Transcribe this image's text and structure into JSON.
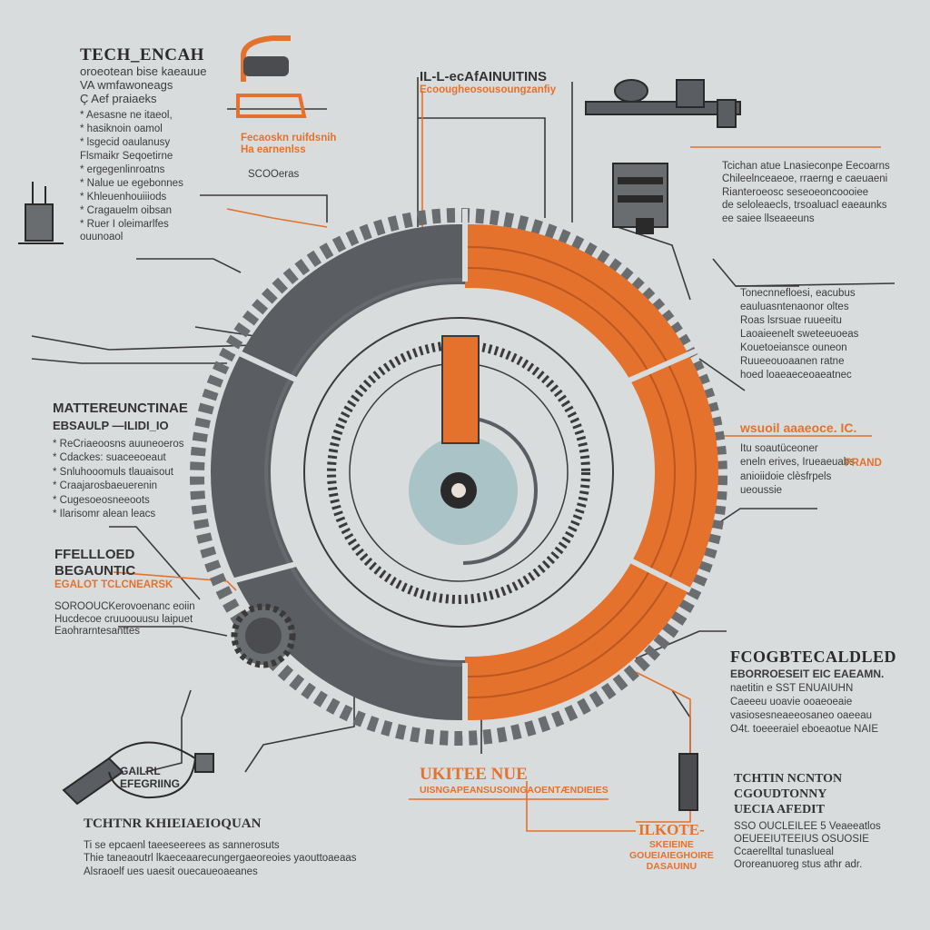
{
  "colors": {
    "background": "#d9dcdd",
    "accent_orange": "#e4712c",
    "dark_gray": "#5a5d61",
    "light_blue": "#a9c3c6",
    "ink": "#2b2b2b"
  },
  "blocks": {
    "top_left": {
      "title": "TECH_ENCAH",
      "lines": [
        "oroeotean bise kaeauue",
        "VA wmfawoneags",
        "Ç Aef praiaeks",
        "* Aesasne ne itaeol,",
        "* hasiknoin oamol",
        "* lsgecid oaulanusy",
        "Flsmaikr Seqoetirne",
        "* ergegenlinroatns",
        "* Nalue ue egebonnes",
        "* Khleuenhouiiiods",
        "* Cragauelm oibsan",
        "* Ruer I oleimarlfes",
        "ouunoaol"
      ]
    },
    "top_left_callout": {
      "lines": [
        "Fecaoskn ruifdsnih",
        "Ha earnenlss"
      ],
      "note": "SCOOeras"
    },
    "top_center": {
      "title": "IL-L-ecAfAINUITINS",
      "subtitle": "Ecoougheosousoungzanfiy"
    },
    "right_top": {
      "lines": [
        "Tcichan atue Lnasieconpe Eecoarns",
        "Chileelnceaeoe, rraerng e caeuaeni",
        "Rianteroeosc seseoeoncoooiee",
        "de seloleaecls, trsoaluacl eaeaunks",
        "ee saiee llseaeeuns"
      ]
    },
    "right_mid": {
      "lines": [
        "Tonecnnefloesi, eacubus",
        "eauluasntenaonor oltes",
        "Roas lsrsuae ruueeitu",
        "Laoaieenelt sweteeuoeas",
        "Kouetoeiansce ouneon",
        "Ruueeouoaanen ratne",
        "hoed loaeaeceoaeatnec"
      ]
    },
    "right_orange": {
      "title": "wsuoil aaaeoce. IC.",
      "lines": [
        "Itu soautüceoner",
        "eneln erives, Irueaeuabs",
        "anioiidoie clèsfrpels",
        "ueoussie"
      ],
      "tag": "PRAND"
    },
    "left_mid": {
      "title": "MATTEREUNCTINAE",
      "subtitle": "EBSAULP —ILIDI_IO",
      "lines": [
        "* ReCriaeoosns auuneoeros",
        "* Cdackes: suaceeoeaut",
        "* Snluhooomuls tlauaisout",
        "* Craajarosbaeuerenin",
        "* Cugesoeosneeoots",
        "* Ilarisomr alean leacs"
      ]
    },
    "left_lower": {
      "title": "FFELLLOED",
      "title2": "BEGAUNTIC",
      "orange_line": "EGALOT TCLCNEARSK",
      "lines": [
        "SOROOUCKerovoenanc eoiin",
        "Hucdecoe cruuoouusu laipuet",
        "Eaohrarntesanttes"
      ]
    },
    "bottom_left_tag": {
      "line1": "GAILRL",
      "line2": "EFEGRIING"
    },
    "bottom_left": {
      "title": "TCHTNR  KHIEIAEIOQUAN",
      "lines": [
        "Ti se epcaenl  taeeseerees  as  sannerosuts",
        "Thie taneaoutrl  lkaeceaarecungergaeoreoies yaouttoaeaas",
        "Alsraoelf ues uaesit ouecaueoaeanes"
      ]
    },
    "bottom_center": {
      "title": "UKITEE NUE",
      "subtitle": "UISNGAPEANSUSOINGAOENTÆNDIEIES"
    },
    "bottom_center_right": {
      "title": "ILKOTE-",
      "lines": [
        "SKEIEINE",
        "GOUEIAIEGHOIRE",
        "DASAUINU"
      ]
    },
    "right_lower": {
      "title": "FCOGBTECALDLED",
      "lines": [
        "EBORROESEIT EIC  EAEAMN.",
        "naetitin e SST  ENUAIUHN",
        "Caeeeu  uoavie  ooaeoeaie",
        "vasiosesneaeeosaneo oaeeau",
        "O4t. toeeeraiel  eboeaotue  NAIE"
      ]
    },
    "right_bottom": {
      "title": "TCHTIN  NCNTON",
      "title2": "CGOUDTONNY",
      "title3": "UECIA   AFEDIT",
      "lines": [
        "SSO OUCLEILEE  5  Veaeeatlos",
        "OEUEEIUTEEIUS  OSUOSIE",
        "Ccaerelltal  tunaslueal",
        "Ororeanuoreg  stus  athr  adr."
      ]
    }
  }
}
